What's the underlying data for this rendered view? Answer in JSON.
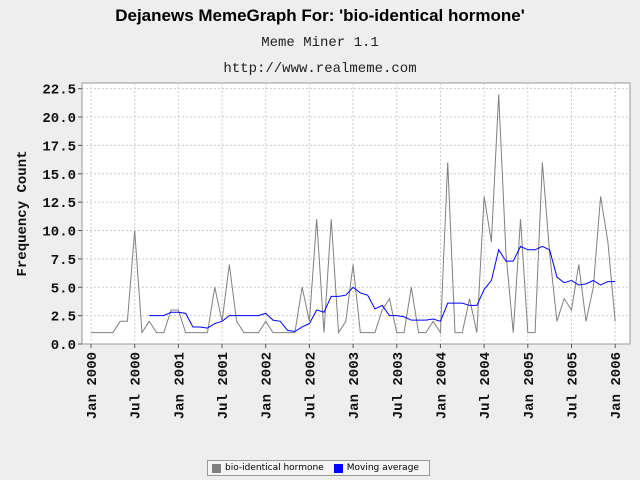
{
  "title": "Dejanews MemeGraph For: 'bio-identical hormone'",
  "subtitle1": "Meme Miner 1.1",
  "subtitle2": "http://www.realmeme.com",
  "colors": {
    "series": "#808080",
    "average": "#0000ff",
    "plot_bg": "#ffffff",
    "grid": "#cccccc"
  },
  "chart_data": {
    "type": "line",
    "ylabel": "Frequency Count",
    "ylim": [
      0,
      23
    ],
    "yticks": [
      "0.0",
      "2.5",
      "5.0",
      "7.5",
      "10.0",
      "12.5",
      "15.0",
      "17.5",
      "20.0",
      "22.5"
    ],
    "xticks": [
      "Jan 2000",
      "Jul 2000",
      "Jan 2001",
      "Jul 2001",
      "Jan 2002",
      "Jul 2002",
      "Jan 2003",
      "Jul 2003",
      "Jan 2004",
      "Jul 2004",
      "Jan 2005",
      "Jul 2005",
      "Jan 2006"
    ],
    "x_start": "Jan 2000",
    "grid": true,
    "legend_position": "bottom",
    "series": [
      {
        "name": "bio-identical hormone",
        "values": [
          1,
          1,
          1,
          1,
          2,
          2,
          10,
          1,
          2,
          1,
          1,
          3,
          3,
          1,
          1,
          1,
          1,
          5,
          2,
          7,
          2,
          1,
          1,
          1,
          2,
          1,
          1,
          1,
          1,
          5,
          2,
          11,
          1,
          11,
          1,
          2,
          7,
          1,
          1,
          1,
          3,
          4,
          1,
          1,
          5,
          1,
          1,
          2,
          1,
          16,
          1,
          1,
          4,
          1,
          13,
          9,
          22,
          8,
          1,
          11,
          1,
          1,
          16,
          8,
          2,
          4,
          3,
          7,
          2,
          5,
          13,
          9,
          2
        ]
      },
      {
        "name": "Moving average",
        "values": [
          null,
          null,
          null,
          null,
          null,
          null,
          null,
          null,
          2.5,
          2.5,
          2.5,
          2.8,
          2.8,
          2.7,
          1.5,
          1.5,
          1.4,
          1.8,
          2.0,
          2.5,
          2.5,
          2.5,
          2.5,
          2.5,
          2.7,
          2.1,
          2.0,
          1.2,
          1.1,
          1.5,
          1.8,
          3.0,
          2.8,
          4.2,
          4.2,
          4.3,
          5.0,
          4.5,
          4.3,
          3.1,
          3.4,
          2.5,
          2.5,
          2.4,
          2.1,
          2.1,
          2.1,
          2.2,
          2.0,
          3.6,
          3.6,
          3.6,
          3.4,
          3.4,
          4.8,
          5.6,
          8.3,
          7.3,
          7.3,
          8.6,
          8.3,
          8.3,
          8.6,
          8.3,
          5.9,
          5.4,
          5.6,
          5.2,
          5.3,
          5.6,
          5.2,
          5.5,
          5.5
        ]
      }
    ]
  }
}
